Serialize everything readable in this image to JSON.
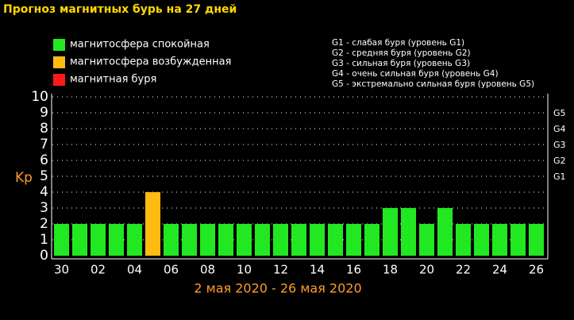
{
  "chart_data": {
    "type": "bar",
    "title": "Прогноз магнитных бурь на 27 дней",
    "subtitle": "2 мая 2020 - 26 мая 2020",
    "ylabel": "Kp",
    "legend": [
      {
        "label": "магнитосфера спокойная",
        "color": "#22e822"
      },
      {
        "label": "магнитосфера возбужденная",
        "color": "#ffbb11"
      },
      {
        "label": "магнитная буря",
        "color": "#ff1a1a"
      }
    ],
    "notes": [
      "G1 - слабая буря (уровень G1)",
      "G2 - средняя буря (уровень G2)",
      "G3 - сильная буря (уровень G3)",
      "G4 - очень сильная буря (уровень G4)",
      "G5 - экстремально сильная буря (уровень G5)"
    ],
    "categories": [
      "30",
      null,
      "02",
      null,
      "04",
      null,
      "06",
      null,
      "08",
      null,
      "10",
      null,
      "12",
      null,
      "14",
      null,
      "16",
      null,
      "18",
      null,
      "20",
      null,
      "22",
      null,
      "24",
      null,
      "26"
    ],
    "values": [
      2,
      2,
      2,
      2,
      2,
      4,
      2,
      2,
      2,
      2,
      2,
      2,
      2,
      2,
      2,
      2,
      2,
      2,
      3,
      3,
      2,
      3,
      2,
      2,
      2,
      2,
      2
    ],
    "colors": [
      "#22e822",
      "#22e822",
      "#22e822",
      "#22e822",
      "#22e822",
      "#ffbb11",
      "#22e822",
      "#22e822",
      "#22e822",
      "#22e822",
      "#22e822",
      "#22e822",
      "#22e822",
      "#22e822",
      "#22e822",
      "#22e822",
      "#22e822",
      "#22e822",
      "#22e822",
      "#22e822",
      "#22e822",
      "#22e822",
      "#22e822",
      "#22e822",
      "#22e822",
      "#22e822",
      "#22e822"
    ],
    "ylim": [
      0,
      10
    ],
    "yticks": [
      0,
      1,
      2,
      3,
      4,
      5,
      6,
      7,
      8,
      9,
      10
    ],
    "y2lim": [
      0,
      10
    ],
    "y2ticks": [
      {
        "value": 5,
        "label": "G1"
      },
      {
        "value": 6,
        "label": "G2"
      },
      {
        "value": 7,
        "label": "G3"
      },
      {
        "value": 8,
        "label": "G4"
      },
      {
        "value": 9,
        "label": "G5"
      }
    ],
    "grid": true
  }
}
